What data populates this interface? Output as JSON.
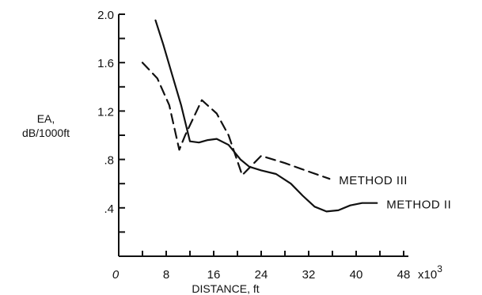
{
  "chart_data": {
    "type": "line",
    "xlabel": "DISTANCE, ft",
    "ylabel_line1": "EA,",
    "ylabel_line2": "dB/1000ft",
    "x_scale_label": "x10",
    "x_scale_exponent": "3",
    "xlim": [
      0,
      48
    ],
    "ylim": [
      0,
      2.0
    ],
    "x_ticks": [
      0,
      8,
      16,
      24,
      32,
      40,
      48
    ],
    "x_tick_labels": [
      "0",
      "8",
      "16",
      "24",
      "32",
      "40",
      "48"
    ],
    "y_ticks": [
      0.4,
      0.8,
      1.2,
      1.6,
      2.0
    ],
    "y_tick_labels": [
      ".4",
      ".8",
      "1.2",
      "1.6",
      "2.0"
    ],
    "series": [
      {
        "name": "METHOD III",
        "style": "dashed",
        "x": [
          4.0,
          6.5,
          8.5,
          10.2,
          11.2,
          14.0,
          16.5,
          18.5,
          20.8,
          24.0,
          28.0,
          32.0,
          35.5
        ],
        "y": [
          1.6,
          1.47,
          1.25,
          0.88,
          1.0,
          1.29,
          1.18,
          1.0,
          0.67,
          0.83,
          0.77,
          0.7,
          0.64
        ]
      },
      {
        "name": "METHOD II",
        "style": "solid",
        "x": [
          6.2,
          7.5,
          9.0,
          10.5,
          12.0,
          13.5,
          15.0,
          16.5,
          18.5,
          20.5,
          22.0,
          24.0,
          26.5,
          29.0,
          31.0,
          33.0,
          35.0,
          37.0,
          39.0,
          41.0,
          43.5
        ],
        "y": [
          1.95,
          1.75,
          1.5,
          1.25,
          0.95,
          0.94,
          0.96,
          0.97,
          0.92,
          0.8,
          0.74,
          0.71,
          0.68,
          0.6,
          0.5,
          0.41,
          0.37,
          0.38,
          0.42,
          0.44,
          0.44
        ]
      }
    ]
  }
}
